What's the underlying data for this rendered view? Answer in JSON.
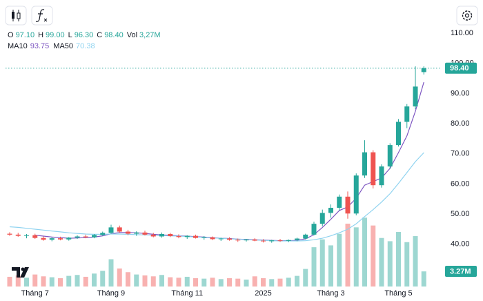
{
  "chart_data": {
    "type": "candlestick",
    "categories": [
      null,
      null,
      null,
      "Tháng 7",
      null,
      null,
      null,
      null,
      null,
      null,
      null,
      null,
      "Tháng 9",
      null,
      null,
      null,
      null,
      null,
      null,
      null,
      null,
      "Tháng 11",
      null,
      null,
      null,
      null,
      null,
      null,
      null,
      null,
      "2025",
      null,
      null,
      null,
      null,
      null,
      null,
      null,
      "Tháng 3",
      null,
      null,
      null,
      null,
      null,
      null,
      null,
      "Tháng 5",
      null,
      null,
      null
    ],
    "open": [
      43.5,
      43.2,
      42.8,
      43,
      42.1,
      41.5,
      42,
      41.6,
      42.2,
      42.6,
      42.3,
      43.1,
      43.8,
      45.6,
      44.2,
      43.5,
      43.9,
      43.2,
      42.6,
      43.4,
      42.7,
      42.4,
      42.8,
      42.1,
      42.3,
      41.7,
      41.9,
      41.5,
      41.3,
      41.6,
      41.2,
      41,
      41.3,
      41.1,
      41.4,
      41.9,
      43.2,
      46.8,
      50.4,
      52.1,
      55.8,
      50.2,
      62.8,
      70.5,
      59.6,
      65.8,
      72.9,
      80.6,
      85.7,
      97.1
    ],
    "high": [
      44,
      43.8,
      43.4,
      43.5,
      42.6,
      42.3,
      42.5,
      42.4,
      43,
      43.2,
      43.4,
      44.2,
      46.5,
      46.2,
      44.8,
      44.3,
      44.5,
      43.8,
      43.9,
      43.8,
      43.3,
      43,
      43.2,
      42.7,
      42.6,
      42.2,
      42.3,
      41.9,
      41.8,
      42,
      41.7,
      41.5,
      41.8,
      41.6,
      42.2,
      43.5,
      47.5,
      51.5,
      53.2,
      56.5,
      57.5,
      63.5,
      74.5,
      71.2,
      66.5,
      73.5,
      81.5,
      86.5,
      99,
      99
    ],
    "low": [
      42.8,
      42.5,
      42,
      41.8,
      41.2,
      41,
      41.3,
      41.2,
      41.8,
      42,
      42,
      42.8,
      43.5,
      43.8,
      43,
      42.8,
      42.9,
      42.3,
      42.2,
      42.4,
      42,
      41.8,
      41.9,
      41.5,
      41.4,
      41.1,
      41.2,
      40.8,
      40.9,
      41,
      40.6,
      40.5,
      40.8,
      40.7,
      41,
      41.6,
      42.9,
      46,
      48.8,
      51.2,
      48.5,
      49.6,
      62,
      58.5,
      58.8,
      65,
      72.4,
      78.5,
      84.8,
      96.3
    ],
    "close": [
      43.2,
      42.8,
      43,
      42.1,
      41.5,
      42,
      41.6,
      42.2,
      42.6,
      42.3,
      43.1,
      43.8,
      45.6,
      44.2,
      43.5,
      43.9,
      43.2,
      42.6,
      43.4,
      42.7,
      42.4,
      42.8,
      42.1,
      42.3,
      41.7,
      41.9,
      41.5,
      41.3,
      41.6,
      41.2,
      41,
      41.3,
      41.1,
      41.4,
      41.9,
      43.2,
      46.8,
      50.4,
      52.1,
      55.8,
      50.2,
      62.8,
      70.5,
      59.6,
      65.8,
      72.9,
      80.6,
      85.7,
      92.3,
      98.4
    ],
    "volume": [
      2.1,
      2.4,
      1.9,
      2.6,
      2.2,
      2,
      1.8,
      2.3,
      2.5,
      2.1,
      2.8,
      3.4,
      5.9,
      3.9,
      3.1,
      2.6,
      2.4,
      2.2,
      2.5,
      2,
      1.9,
      2.1,
      1.8,
      1.7,
      1.9,
      1.6,
      1.8,
      1.7,
      1.5,
      2.2,
      1.8,
      1.6,
      1.7,
      1.9,
      2.3,
      3.8,
      8.5,
      10.2,
      8.9,
      11.4,
      13.6,
      12.8,
      14.9,
      13.2,
      10.5,
      9.8,
      11.8,
      9.6,
      10.9,
      3.27
    ],
    "ylim": [
      26,
      121
    ],
    "yticks": [
      {
        "value": 40,
        "label": "40.00"
      },
      {
        "value": 50,
        "label": "50.00"
      },
      {
        "value": 60,
        "label": "60.00"
      },
      {
        "value": 70,
        "label": "70.00"
      },
      {
        "value": 80,
        "label": "80.00"
      },
      {
        "value": 90,
        "label": "90.00"
      },
      {
        "value": 100,
        "label": "100.00"
      },
      {
        "value": 110,
        "label": "110.00"
      }
    ],
    "volume_lim": [
      0,
      62
    ],
    "up_color": "#26a69a",
    "down_color": "#ef5350",
    "ma": [
      {
        "name": "MA10",
        "color": "#7e57c2",
        "legend_value": "93.75",
        "values": [
          null,
          null,
          null,
          43.0,
          42.7,
          42.4,
          42.2,
          42.0,
          42.1,
          42.2,
          42.4,
          42.8,
          43.5,
          43.9,
          43.9,
          43.8,
          43.6,
          43.3,
          43.1,
          43.0,
          42.8,
          42.7,
          42.5,
          42.4,
          42.2,
          42.0,
          41.9,
          41.7,
          41.6,
          41.5,
          41.4,
          41.3,
          41.2,
          41.2,
          41.3,
          41.8,
          43.2,
          45.6,
          48.3,
          51.2,
          52.4,
          55.3,
          59.6,
          60.8,
          62.0,
          65.2,
          70.4,
          76.0,
          84.1,
          93.75
        ]
      },
      {
        "name": "MA50",
        "color": "#8fd3f0",
        "legend_value": "70.38",
        "values": [
          45.8,
          45.6,
          45.3,
          45.0,
          44.7,
          44.4,
          44.1,
          43.8,
          43.6,
          43.4,
          43.3,
          43.3,
          43.4,
          43.4,
          43.3,
          43.2,
          43.1,
          43.0,
          42.9,
          42.8,
          42.7,
          42.6,
          42.4,
          42.3,
          42.1,
          42.0,
          41.8,
          41.7,
          41.5,
          41.4,
          41.3,
          41.2,
          41.1,
          41.1,
          41.1,
          41.2,
          41.5,
          42.0,
          42.8,
          43.8,
          45.0,
          46.8,
          49.2,
          51.5,
          54.0,
          56.8,
          60.2,
          63.8,
          67.4,
          70.38
        ]
      }
    ],
    "legend": [
      {
        "name": "O",
        "value": "97.10"
      },
      {
        "name": "H",
        "value": "99.00"
      },
      {
        "name": "L",
        "value": "96.30"
      },
      {
        "name": "C",
        "value": "98.40"
      },
      {
        "name": "Vol",
        "value": "3,27M"
      }
    ],
    "last_price": {
      "value": 98.4,
      "label": "98.40"
    },
    "last_volume": {
      "value": 3.27,
      "label": "3.27M"
    }
  }
}
